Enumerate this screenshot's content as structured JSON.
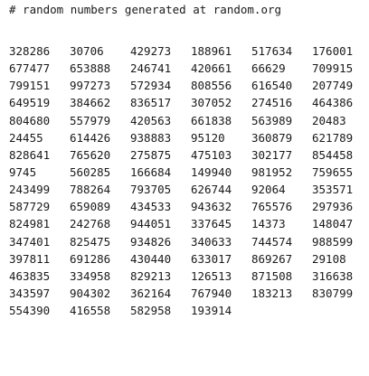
{
  "header": "# random numbers generated at random.org",
  "numbers": [
    [
      "328286",
      "30706",
      "429273",
      "188961",
      "517634",
      "176001"
    ],
    [
      "677477",
      "653888",
      "246741",
      "420661",
      "66629",
      "709915"
    ],
    [
      "799151",
      "997273",
      "572934",
      "808556",
      "616540",
      "207749"
    ],
    [
      "649519",
      "384662",
      "836517",
      "307052",
      "274516",
      "464386"
    ],
    [
      "804680",
      "557979",
      "420563",
      "661838",
      "563989",
      "20483"
    ],
    [
      "24455",
      "614426",
      "938883",
      "95120",
      "360879",
      "621789"
    ],
    [
      "828641",
      "765620",
      "275875",
      "475103",
      "302177",
      "854458"
    ],
    [
      "9745",
      "560285",
      "166684",
      "149940",
      "981952",
      "759655"
    ],
    [
      "243499",
      "788264",
      "793705",
      "626744",
      "92064",
      "353571"
    ],
    [
      "587729",
      "659089",
      "434533",
      "943632",
      "765576",
      "297936"
    ],
    [
      "824981",
      "242768",
      "944051",
      "337645",
      "14373",
      "148047"
    ],
    [
      "347401",
      "825475",
      "934826",
      "340633",
      "744574",
      "988599"
    ],
    [
      "397811",
      "691286",
      "430440",
      "633017",
      "869267",
      "29108"
    ],
    [
      "463835",
      "334958",
      "829213",
      "126513",
      "871508",
      "316638"
    ],
    [
      "343597",
      "904302",
      "362164",
      "767940",
      "183213",
      "830799"
    ],
    [
      "554390",
      "416558",
      "582958",
      "193914"
    ]
  ]
}
